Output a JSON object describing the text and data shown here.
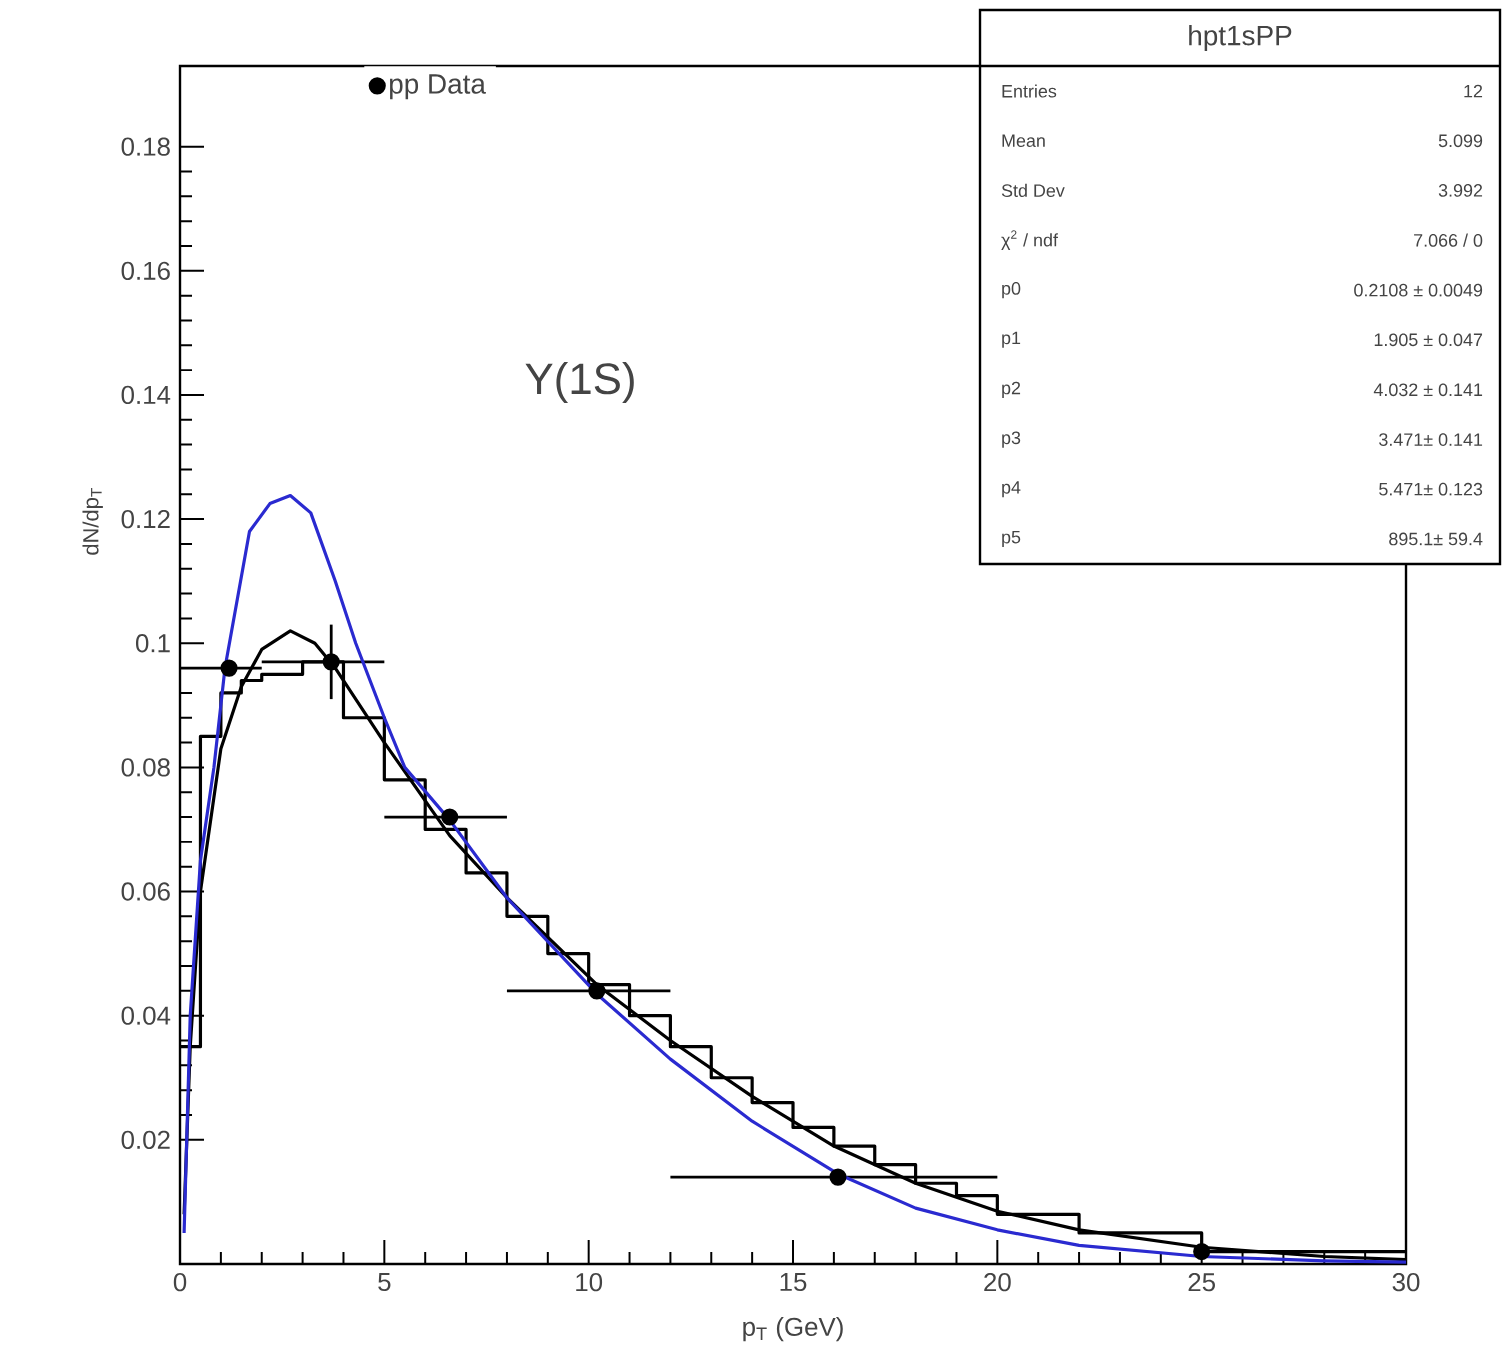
{
  "chart_data": {
    "type": "line",
    "xlabel": "p$_{T}$ (GeV)",
    "ylabel": "dN/dp$_{T}$",
    "xlim": [
      0,
      30
    ],
    "ylim": [
      0,
      0.193
    ],
    "xticks": [
      0,
      5,
      10,
      15,
      20,
      25,
      30
    ],
    "yticks": [
      0.02,
      0.04,
      0.06,
      0.08,
      0.1,
      0.12,
      0.14,
      0.16,
      0.18
    ],
    "legend": "top",
    "line_style": "solid",
    "series": [
      {
        "name": "pp Data",
        "type": "scatter",
        "marker": "circle",
        "color": "#000000",
        "x": [
          1.2,
          3.7,
          6.6,
          10.2,
          16.1,
          25
        ],
        "values": [
          0.096,
          0.097,
          0.072,
          0.044,
          0.014,
          0.002
        ],
        "xerrors": [
          [
            0,
            2
          ],
          [
            2,
            5
          ],
          [
            5,
            8
          ],
          [
            8,
            12
          ],
          [
            12,
            20
          ],
          null
        ],
        "errors": [
          null,
          0.006,
          null,
          null,
          null,
          null
        ]
      },
      {
        "type": "step",
        "color": "#000000",
        "x": [
          0,
          0.5,
          1,
          1.5,
          2,
          3,
          4,
          5,
          6,
          7,
          8,
          9,
          10,
          11,
          12,
          13,
          14,
          15,
          16,
          17,
          18,
          19,
          20,
          22,
          25,
          30
        ],
        "values": [
          0.035,
          0.085,
          0.092,
          0.094,
          0.095,
          0.097,
          0.088,
          0.078,
          0.07,
          0.063,
          0.056,
          0.05,
          0.045,
          0.04,
          0.035,
          0.03,
          0.026,
          0.022,
          0.019,
          0.016,
          0.013,
          0.011,
          0.008,
          0.005,
          0.002,
          0.002
        ]
      },
      {
        "type": "line",
        "color": "#000000",
        "x": [
          0.1,
          0.25,
          0.5,
          1,
          1.5,
          2,
          2.7,
          3.3,
          3.8,
          5,
          6.6,
          8,
          10.2,
          12,
          14,
          16,
          18,
          20,
          22,
          25,
          28,
          30
        ],
        "values": [
          0.008,
          0.035,
          0.06,
          0.083,
          0.093,
          0.099,
          0.102,
          0.1,
          0.096,
          0.084,
          0.069,
          0.059,
          0.045,
          0.036,
          0.027,
          0.019,
          0.013,
          0.0085,
          0.0055,
          0.0027,
          0.0012,
          0.0007
        ]
      },
      {
        "type": "line",
        "color": "#2a2ad0",
        "x": [
          0.1,
          0.25,
          0.5,
          0.83,
          1.1,
          1.7,
          2.2,
          2.7,
          3.2,
          3.8,
          4.3,
          5,
          5.5,
          6.6,
          8,
          10.2,
          12,
          14,
          16.1,
          18,
          20,
          22,
          25,
          28,
          30
        ],
        "values": [
          0.005,
          0.04,
          0.065,
          0.08,
          0.096,
          0.118,
          0.1225,
          0.1238,
          0.121,
          0.11,
          0.1,
          0.088,
          0.08,
          0.0715,
          0.059,
          0.0435,
          0.033,
          0.023,
          0.0145,
          0.009,
          0.0055,
          0.003,
          0.0012,
          0.0005,
          0.0003
        ]
      }
    ],
    "annotations": [
      "Υ(1S)",
      "hpt1sPP",
      "Entries",
      "12",
      "Mean",
      "5.099",
      "Std Dev",
      "3.992",
      "χ$^{2}$ / ndf",
      "7.066 / 0",
      "p0",
      "0.2108 ± 0.0049",
      "p1",
      "1.905 ± 0.047",
      "p2",
      "4.032 ± 0.141",
      "p3",
      "3.471± 0.141",
      "p4",
      "5.471± 0.123",
      "p5",
      "895.1± 59.4"
    ]
  }
}
